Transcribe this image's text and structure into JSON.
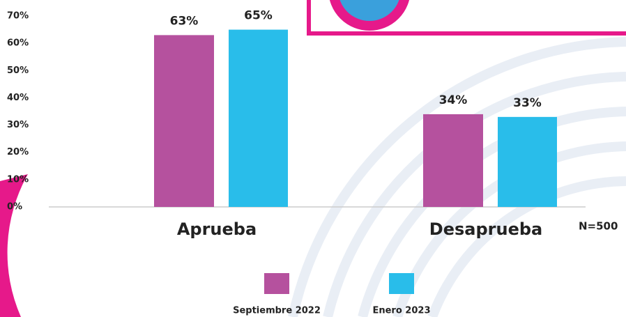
{
  "chart_data": {
    "type": "bar",
    "categories": [
      "Aprueba",
      "Desaprueba"
    ],
    "series": [
      {
        "name": "Septiembre 2022",
        "color": "#b5519e",
        "values": [
          63,
          34
        ],
        "value_labels": [
          "63%",
          "34%"
        ]
      },
      {
        "name": "Enero 2023",
        "color": "#29bdea",
        "values": [
          65,
          33
        ],
        "value_labels": [
          "65%",
          "33%"
        ]
      }
    ],
    "ylim": [
      0,
      70
    ],
    "yticks": [
      {
        "value": 0,
        "label": "0%"
      },
      {
        "value": 10,
        "label": "10%"
      },
      {
        "value": 20,
        "label": "20%"
      },
      {
        "value": 30,
        "label": "30%"
      },
      {
        "value": 40,
        "label": "40%"
      },
      {
        "value": 50,
        "label": "50%"
      },
      {
        "value": 60,
        "label": "60%"
      },
      {
        "value": 70,
        "label": "70%"
      }
    ],
    "note": "N=500",
    "legend": "bottom"
  }
}
